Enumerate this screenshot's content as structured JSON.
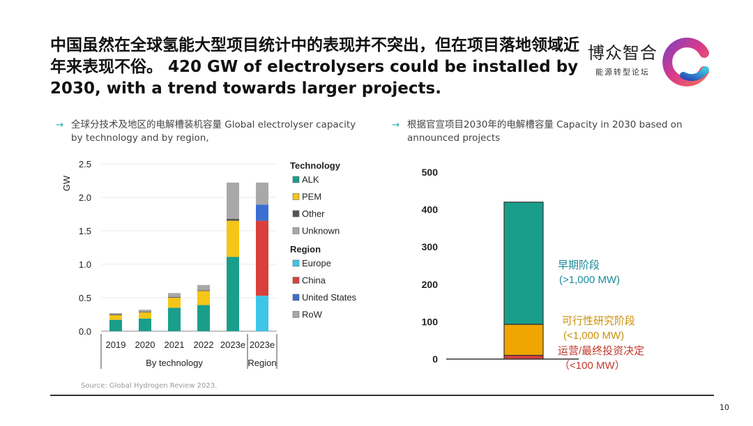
{
  "header": {
    "title": "中国虽然在全球氢能大型项目统计中的表现并不突出，但在项目落地领域近年来表现不俗。 420 GW of electrolysers could be installed by 2030, with a trend towards larger projects.",
    "brand_name": "博众智合",
    "brand_sub": "能源转型论坛"
  },
  "left_panel": {
    "arrow": "→",
    "subtitle": "全球分技术及地区的电解槽装机容量 Global electrolyser capacity by technology and by region,"
  },
  "right_panel": {
    "arrow": "→",
    "subtitle": "根据官宣项目2030年的电解槽容量 Capacity in 2030 based on announced projects"
  },
  "footer": {
    "source": "Source: Global Hydrogen Review 2023.",
    "page_number": "10"
  },
  "chart_data": [
    {
      "type": "bar",
      "stacked": true,
      "title": "",
      "ylabel": "GW",
      "ylim": [
        0,
        2.5
      ],
      "yticks": [
        "0.0",
        "0.5",
        "1.0",
        "1.5",
        "2.0",
        "2.5"
      ],
      "categories": [
        "2019",
        "2020",
        "2021",
        "2022",
        "2023e",
        "2023e"
      ],
      "groups": [
        {
          "label": "By technology",
          "categories": [
            "2019",
            "2020",
            "2021",
            "2022",
            "2023e"
          ]
        },
        {
          "label": "Region",
          "categories": [
            "2023e"
          ]
        }
      ],
      "legend": [
        {
          "heading": "Technology",
          "entries": [
            {
              "name": "ALK",
              "color": "#1a9e8c"
            },
            {
              "name": "PEM",
              "color": "#f5c518"
            },
            {
              "name": "Other",
              "color": "#555555"
            },
            {
              "name": "Unknown",
              "color": "#a8a8a8"
            }
          ]
        },
        {
          "heading": "Region",
          "entries": [
            {
              "name": "Europe",
              "color": "#3ec6e8"
            },
            {
              "name": "China",
              "color": "#d9403c"
            },
            {
              "name": "United States",
              "color": "#3a6fd1"
            },
            {
              "name": "RoW",
              "color": "#a8a8a8"
            }
          ]
        }
      ],
      "series": [
        {
          "name": "ALK",
          "values": [
            0.17,
            0.19,
            0.35,
            0.39,
            1.11,
            0
          ]
        },
        {
          "name": "PEM",
          "values": [
            0.07,
            0.09,
            0.15,
            0.21,
            0.54,
            0
          ]
        },
        {
          "name": "Other",
          "values": [
            0.01,
            0.01,
            0.01,
            0.01,
            0.03,
            0
          ]
        },
        {
          "name": "Unknown",
          "values": [
            0.02,
            0.03,
            0.06,
            0.08,
            0.54,
            0
          ]
        },
        {
          "name": "Europe",
          "values": [
            0,
            0,
            0,
            0,
            0,
            0.53
          ]
        },
        {
          "name": "China",
          "values": [
            0,
            0,
            0,
            0,
            0,
            1.12
          ]
        },
        {
          "name": "United States",
          "values": [
            0,
            0,
            0,
            0,
            0,
            0.24
          ]
        },
        {
          "name": "RoW",
          "values": [
            0,
            0,
            0,
            0,
            0,
            0.33
          ]
        }
      ]
    },
    {
      "type": "bar",
      "stacked": true,
      "title": "",
      "ylim": [
        0,
        500
      ],
      "yticks": [
        "0",
        "100",
        "200",
        "300",
        "400",
        "500"
      ],
      "categories": [
        "2030"
      ],
      "series": [
        {
          "name": "运营/最终投资决定",
          "detail": "（<100 MW）",
          "values": [
            10
          ],
          "color": "#d9403c",
          "label_color": "#c0392b"
        },
        {
          "name": "可行性研究阶段",
          "detail": "(<1,000 MW)",
          "values": [
            83
          ],
          "color": "#f0a500",
          "label_color": "#c9900a"
        },
        {
          "name": "早期阶段",
          "detail": "(>1,000 MW)",
          "values": [
            327
          ],
          "color": "#1a9e8c",
          "label_color": "#1a8a9c"
        }
      ]
    }
  ]
}
